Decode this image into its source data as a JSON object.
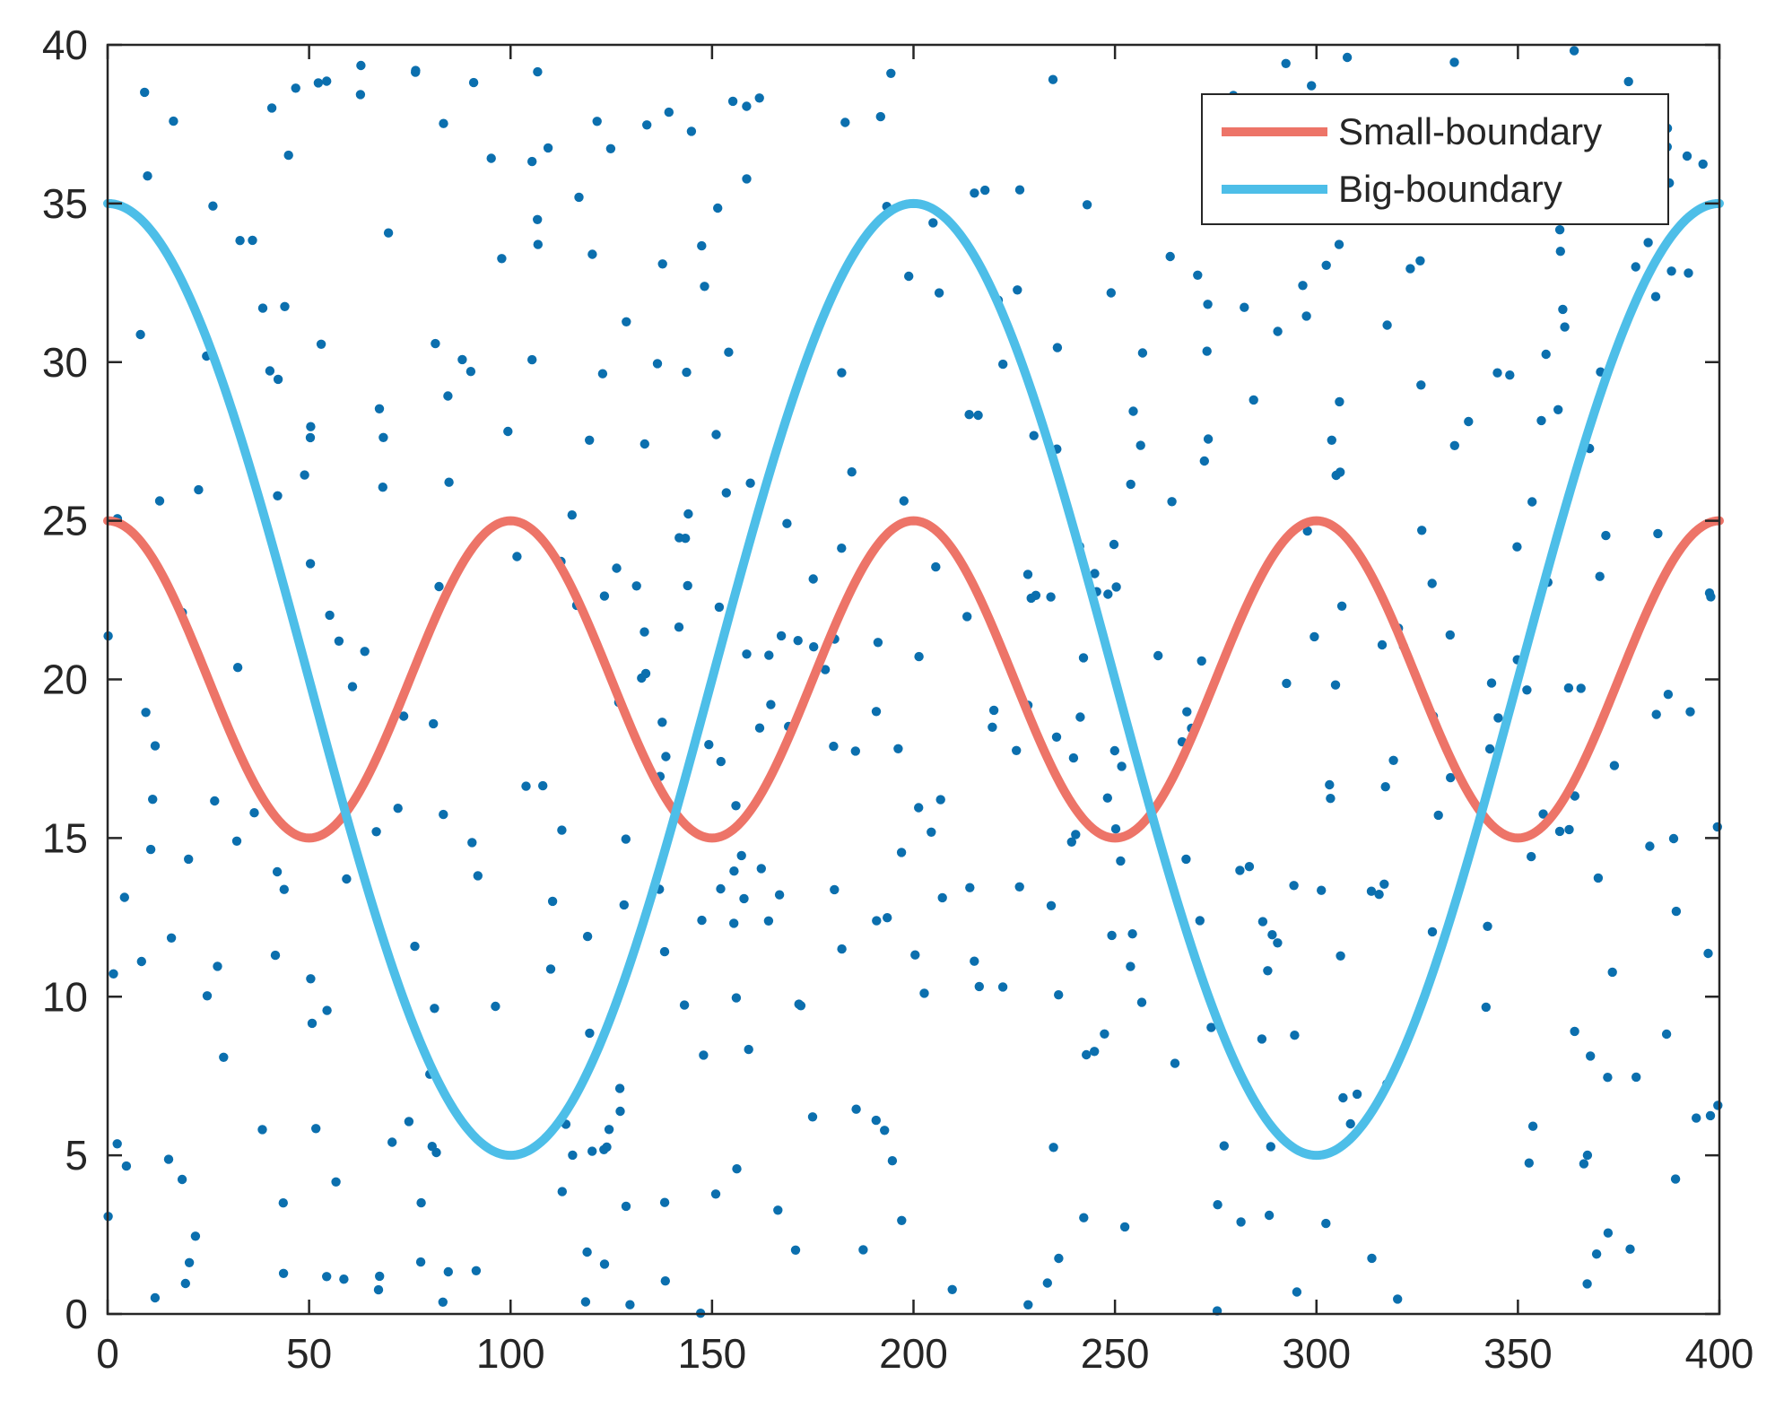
{
  "chart_data": {
    "type": "line",
    "title": "",
    "xlabel": "",
    "ylabel": "",
    "xlim": [
      0,
      400
    ],
    "ylim": [
      0,
      40
    ],
    "x_ticks": [
      0,
      50,
      100,
      150,
      200,
      250,
      300,
      350,
      400
    ],
    "y_ticks": [
      0,
      5,
      10,
      15,
      20,
      25,
      30,
      35,
      40
    ],
    "grid": false,
    "legend_position": "top-right",
    "series": [
      {
        "name": "Small-boundary",
        "color": "#ED7468",
        "kind": "line",
        "function": "20 + 5*cos(2*pi*x/100)",
        "x_range": [
          0,
          400
        ],
        "key_points": [
          [
            0,
            25
          ],
          [
            50,
            15
          ],
          [
            100,
            25
          ],
          [
            150,
            15
          ],
          [
            200,
            25
          ],
          [
            250,
            15
          ],
          [
            300,
            25
          ],
          [
            350,
            15
          ],
          [
            400,
            25
          ]
        ]
      },
      {
        "name": "Big-boundary",
        "color": "#4DBEE8",
        "kind": "line",
        "function": "20 + 15*cos(2*pi*x/200)",
        "x_range": [
          0,
          400
        ],
        "key_points": [
          [
            0,
            35
          ],
          [
            100,
            5
          ],
          [
            200,
            35
          ],
          [
            300,
            5
          ],
          [
            400,
            35
          ]
        ]
      },
      {
        "kind": "scatter",
        "color": "#0B6FAE",
        "count": 500,
        "x_range": [
          0,
          400
        ],
        "y_range": [
          0,
          40
        ],
        "note": "random uniform points"
      }
    ]
  }
}
